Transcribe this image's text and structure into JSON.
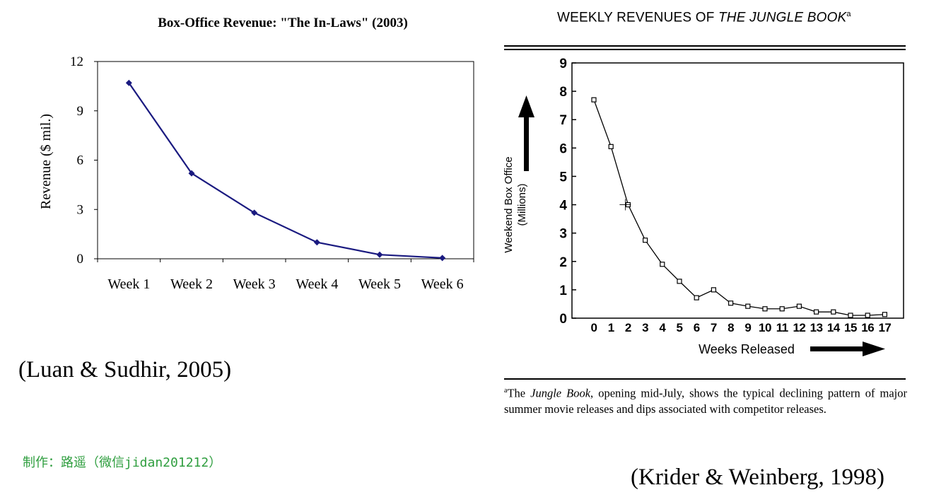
{
  "chart_data": [
    {
      "type": "line",
      "title": "Box-Office Revenue: \"The In-Laws\" (2003)",
      "xlabel": "",
      "ylabel": "Revenue ($ mil.)",
      "categories": [
        "Week 1",
        "Week 2",
        "Week 3",
        "Week 4",
        "Week 5",
        "Week 6"
      ],
      "values": [
        10.7,
        5.2,
        2.8,
        1.0,
        0.25,
        0.05
      ],
      "ylim": [
        0,
        12
      ],
      "yticks": [
        0,
        3,
        6,
        9,
        12
      ],
      "marker": "diamond",
      "color": "#1a1a80"
    },
    {
      "type": "line",
      "title": "WEEKLY REVENUES OF",
      "title_italic": "THE JUNGLE BOOK",
      "title_sup": "a",
      "xlabel": "Weeks Released",
      "ylabel": "Weekend Box Office",
      "ylabel2": "(Millions)",
      "x": [
        0,
        1,
        2,
        3,
        4,
        5,
        6,
        7,
        8,
        9,
        10,
        11,
        12,
        13,
        14,
        15,
        16,
        17
      ],
      "values": [
        7.7,
        6.05,
        4.0,
        2.75,
        1.9,
        1.3,
        0.72,
        1.0,
        0.53,
        0.42,
        0.33,
        0.33,
        0.42,
        0.22,
        0.22,
        0.1,
        0.1,
        0.13
      ],
      "ylim": [
        0,
        9
      ],
      "yticks": [
        0,
        1,
        2,
        3,
        4,
        5,
        6,
        7,
        8,
        9
      ],
      "marker": "square",
      "color": "#000000"
    }
  ],
  "left_citation": "(Luan & Sudhir, 2005)",
  "right_citation": "(Krider & Weinberg, 1998)",
  "maker_credit": "制作：路遥（微信jidan201212）",
  "footnote": {
    "sup": "a",
    "pre": "The ",
    "italic": "Jungle Book",
    "post": ", opening mid-July, shows the typical declining pattern of major summer movie releases and dips associated with competitor releases."
  }
}
